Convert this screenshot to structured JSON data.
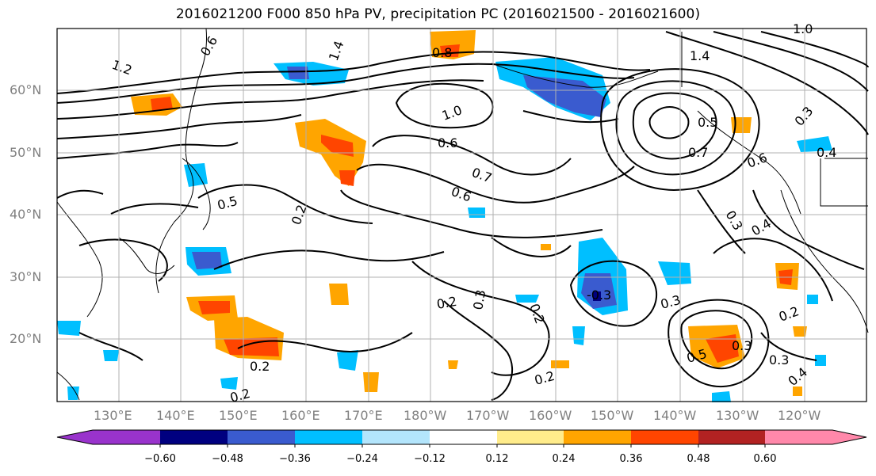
{
  "title": "2016021200 F000 850 hPa PV, precipitation PC (2016021500 - 2016021600)",
  "map": {
    "lon_labels": [
      "130°E",
      "140°E",
      "150°E",
      "160°E",
      "170°E",
      "180°W",
      "170°W",
      "160°W",
      "150°W",
      "140°W",
      "130°W",
      "120°W"
    ],
    "lat_labels": [
      "60°N",
      "50°N",
      "40°N",
      "30°N",
      "20°N"
    ],
    "contour_labels": [
      "1.2",
      "0.6",
      "0.8",
      "1.4",
      "1.0",
      "0.6",
      "0.7",
      "0.6",
      "1.0",
      "1.4",
      "0.3",
      "0.7",
      "0.5",
      "0.6",
      "0.4",
      "0.5",
      "0.2",
      "0.3",
      "0.4",
      "0.2",
      "0.3",
      "0.2",
      "0.3",
      "-0.3",
      "0.3",
      "0.2",
      "0.2",
      "0.5",
      "0.3",
      "0.4",
      "0.2",
      "0.2"
    ],
    "colors": {
      "contour": "#000000",
      "grid": "#b0b0b0",
      "coast": "#000000"
    }
  },
  "colorbar": {
    "tick_labels": [
      "−0.60",
      "−0.48",
      "−0.36",
      "−0.24",
      "−0.12",
      "0.12",
      "0.24",
      "0.36",
      "0.48",
      "0.60"
    ],
    "colors": [
      "#9933cc",
      "#000080",
      "#3a5bcf",
      "#00bfff",
      "#b3e5fc",
      "#ffffff",
      "#ffec8b",
      "#ffa500",
      "#ff4500",
      "#b22222",
      "#ff88aa"
    ]
  }
}
